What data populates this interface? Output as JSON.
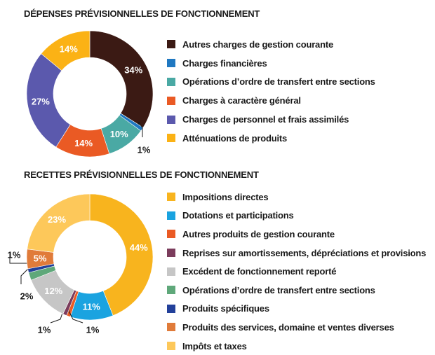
{
  "chart_data": [
    {
      "type": "pie",
      "title": "DÉPENSES PRÉVISIONNELLES DE FONCTIONNEMENT",
      "categories": [
        "Autres charges de gestion courante",
        "Charges financières",
        "Opérations d’ordre de transfert entre sections",
        "Charges à caractère général",
        "Charges de personnel et frais assimilés",
        "Atténuations de produits"
      ],
      "values": [
        34,
        1,
        10,
        14,
        27,
        14
      ],
      "value_labels": [
        "34%",
        "1%",
        "10%",
        "14%",
        "27%",
        "14%"
      ],
      "colors": [
        "#3b1a14",
        "#1f78c1",
        "#4aa9a4",
        "#ea5a24",
        "#5b59ad",
        "#fbb215"
      ],
      "legend_position": "right"
    },
    {
      "type": "pie",
      "title": "RECETTES PRÉVISIONNELLES DE FONCTIONNEMENT",
      "categories": [
        "Impositions directes",
        "Dotations et participations",
        "Autres produits de gestion courante",
        "Reprises sur amortissements, dépréciations et provisions",
        "Excédent de fonctionnement reporté",
        "Opérations d’ordre de transfert entre sections",
        "Produits spécifiques",
        "Produits des services, domaine et ventes diverses",
        "Impôts et taxes"
      ],
      "values": [
        44,
        11,
        1,
        1,
        12,
        2,
        1,
        5,
        23
      ],
      "value_labels": [
        "44%",
        "11%",
        "1%",
        "1%",
        "12%",
        "2%",
        "1%",
        "5%",
        "23%"
      ],
      "colors": [
        "#f8b41e",
        "#1aa3e0",
        "#ea5a24",
        "#7b3c5c",
        "#c6c6c6",
        "#5fa87a",
        "#22409a",
        "#e07b3a",
        "#fdc85a"
      ],
      "legend_position": "right"
    }
  ]
}
